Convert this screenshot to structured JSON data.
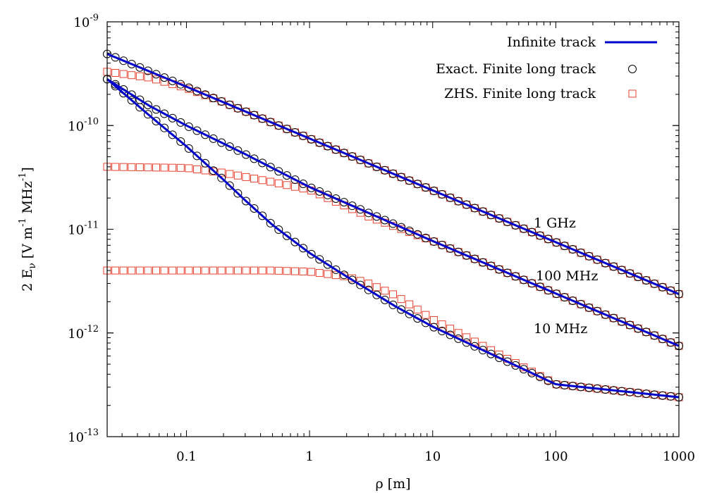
{
  "chart_data": {
    "type": "line",
    "title": "",
    "xlabel": "ρ [m]",
    "ylabel": "2 E",
    "ylabel_sub": "ν",
    "ylabel_units": [
      " [V m",
      "-1",
      " MHz",
      "-1",
      "]"
    ],
    "x_scale": "log",
    "y_scale": "log",
    "xlim": [
      0.0227,
      1000
    ],
    "ylim": [
      1e-13,
      1e-09
    ],
    "grid": false,
    "legend_position": "top-right",
    "x_ticks": [
      {
        "value": 0.1,
        "label": "0.1"
      },
      {
        "value": 1,
        "label": "1"
      },
      {
        "value": 10,
        "label": "10"
      },
      {
        "value": 100,
        "label": "100"
      },
      {
        "value": 1000,
        "label": "1000"
      }
    ],
    "y_ticks": [
      {
        "value": 1e-13,
        "base": "10",
        "exp": "-13"
      },
      {
        "value": 1e-12,
        "base": "10",
        "exp": "-12"
      },
      {
        "value": 1e-11,
        "base": "10",
        "exp": "-11"
      },
      {
        "value": 1e-10,
        "base": "10",
        "exp": "-10"
      },
      {
        "value": 1e-09,
        "base": "10",
        "exp": "-9"
      }
    ],
    "legend": [
      {
        "label": "Infinite track",
        "marker": "line",
        "color": "#0000cd"
      },
      {
        "label": "Exact. Finite long track",
        "marker": "circle",
        "color": "#000000"
      },
      {
        "label": "ZHS. Finite long track",
        "marker": "square",
        "color": "#e8412f"
      }
    ],
    "series_sampling": {
      "x_min": 0.0227,
      "x_max": 1000,
      "marker_points": 71,
      "line_points": 200
    },
    "series": [
      {
        "label": "1 GHz",
        "infinite_track": {
          "description": "~ rho^-1/2 at large rho",
          "points": [
            [
              0.0227,
              4.9e-10
            ],
            [
              0.1,
              2.37e-10
            ],
            [
              1,
              7.5e-11
            ],
            [
              10,
              2.37e-11
            ],
            [
              100,
              7.5e-12
            ],
            [
              1000,
              2.37e-12
            ]
          ]
        },
        "zhs_finite": {
          "points": [
            [
              0.0227,
              3.3e-10
            ],
            [
              0.05,
              2.9e-10
            ],
            [
              0.1,
              2.3e-10
            ],
            [
              0.2,
              1.68e-10
            ],
            [
              0.5,
              1.06e-10
            ],
            [
              1,
              7.5e-11
            ],
            [
              10,
              2.37e-11
            ],
            [
              100,
              7.5e-12
            ],
            [
              1000,
              2.37e-12
            ]
          ]
        }
      },
      {
        "label": "100 MHz",
        "infinite_track": {
          "points": [
            [
              0.0227,
              2.8e-10
            ],
            [
              0.05,
              1.55e-10
            ],
            [
              0.1,
              1e-10
            ],
            [
              0.3,
              5.3e-11
            ],
            [
              1,
              2.55e-11
            ],
            [
              10,
              7.7e-12
            ],
            [
              100,
              2.4e-12
            ],
            [
              1000,
              7.5e-13
            ]
          ]
        },
        "zhs_finite": {
          "points": [
            [
              0.0227,
              4e-11
            ],
            [
              0.1,
              3.9e-11
            ],
            [
              0.2,
              3.5e-11
            ],
            [
              0.5,
              2.85e-11
            ],
            [
              1,
              2.4e-11
            ],
            [
              3,
              1.33e-11
            ],
            [
              10,
              7.7e-12
            ],
            [
              100,
              2.4e-12
            ],
            [
              1000,
              7.5e-13
            ]
          ]
        }
      },
      {
        "label": "10 MHz",
        "infinite_track": {
          "points": [
            [
              0.0227,
              2.8e-10
            ],
            [
              0.05,
              1.25e-10
            ],
            [
              0.1,
              6.3e-11
            ],
            [
              0.2,
              3e-11
            ],
            [
              0.3,
              1.9e-11
            ],
            [
              0.5,
              1.1e-11
            ],
            [
              1,
              5.9e-12
            ],
            [
              2,
              3.5e-12
            ],
            [
              5,
              1.8e-12
            ],
            [
              10,
              1.15e-12
            ],
            [
              100,
              3.2e-13
            ],
            [
              1000,
              2.4e-13
            ]
          ]
        },
        "zhs_finite": {
          "points": [
            [
              0.0227,
              4e-12
            ],
            [
              0.5,
              4e-12
            ],
            [
              1,
              3.9e-12
            ],
            [
              2,
              3.5e-12
            ],
            [
              3,
              3e-12
            ],
            [
              5,
              2.3e-12
            ],
            [
              10,
              1.35e-12
            ],
            [
              100,
              3.2e-13
            ],
            [
              1000,
              2.4e-13
            ]
          ]
        }
      }
    ]
  }
}
